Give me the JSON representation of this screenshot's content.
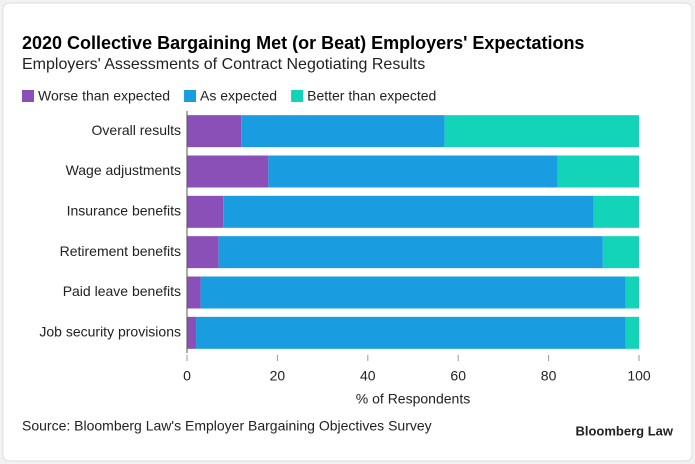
{
  "chart_data": {
    "type": "stacked-barh",
    "title": "2020 Collective Bargaining Met (or Beat) Employers' Expectations",
    "subtitle": "Employers' Assessments of Contract Negotiating Results",
    "categories": [
      "Overall results",
      "Wage adjustments",
      "Insurance benefits",
      "Retirement benefits",
      "Paid leave benefits",
      "Job security provisions"
    ],
    "series": [
      {
        "name": "Worse than expected",
        "color": "#8b50b8",
        "values": [
          12,
          18,
          8,
          7,
          3,
          2
        ]
      },
      {
        "name": "As expected",
        "color": "#1a9de0",
        "values": [
          45,
          64,
          82,
          85,
          94,
          95
        ]
      },
      {
        "name": "Better than expected",
        "color": "#13d4b8",
        "values": [
          43,
          18,
          10,
          8,
          3,
          3
        ]
      }
    ],
    "xlim": [
      0,
      100
    ],
    "xticks": [
      0,
      20,
      40,
      60,
      80,
      100
    ],
    "xlabel": "% of Respondents",
    "source": "Source: Bloomberg Law's Employer Bargaining Objectives Survey",
    "credit": "Bloomberg Law"
  }
}
